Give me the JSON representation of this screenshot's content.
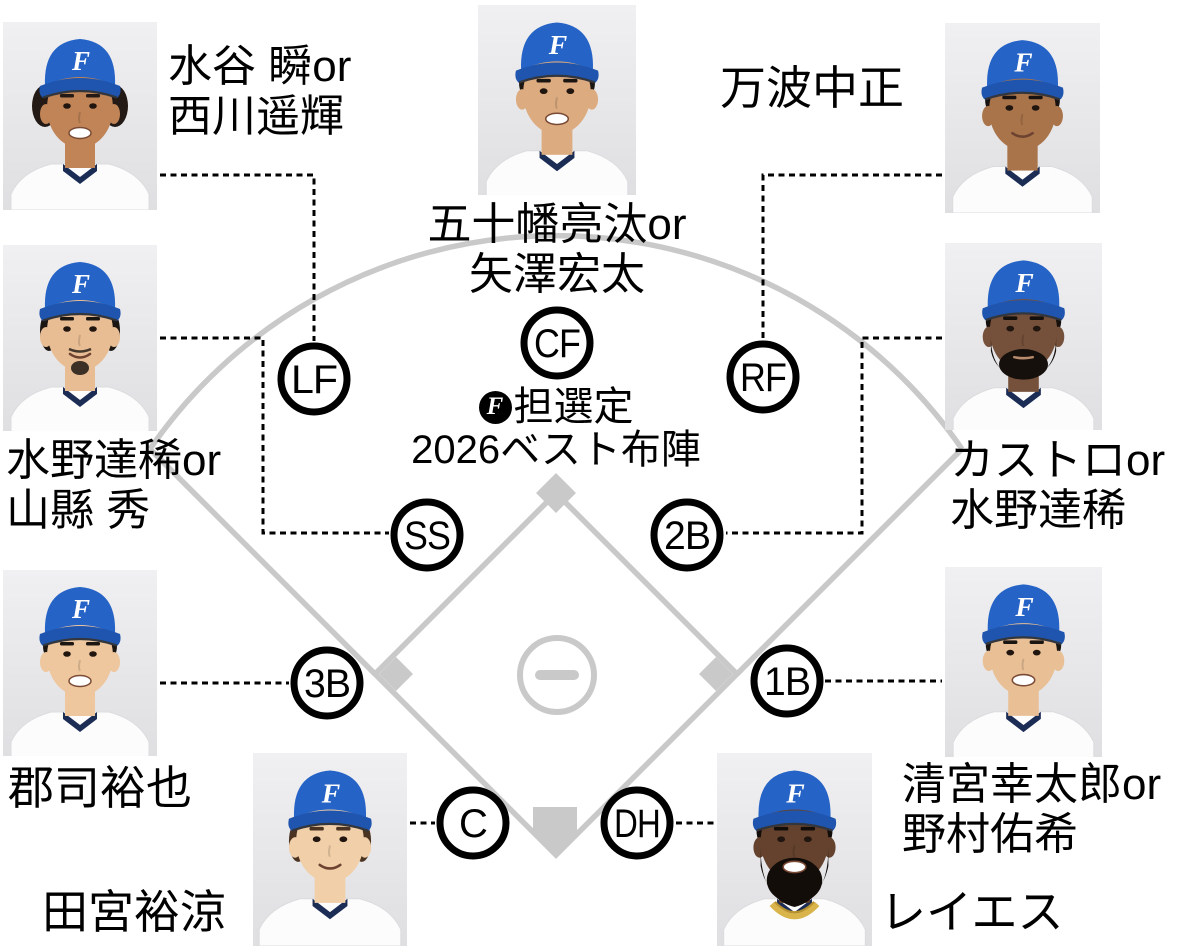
{
  "center_note": {
    "badge": "F",
    "line1": "担選定",
    "line2": "2026ベスト布陣"
  },
  "pitcher": {
    "mark": "−"
  },
  "colors": {
    "field_line": "#c9c9c9",
    "connector_line": "#000000",
    "position_circle_stroke": "#000000",
    "cap_blue": "#2563c6",
    "cap_brim_blue": "#1f55ae",
    "photo_background": "#e9e9eb",
    "chain_gold": "#d9b44a"
  },
  "players": [
    {
      "id": "lf",
      "position": "LF",
      "name_line1": "水谷 瞬or",
      "name_line2": "西川遥輝",
      "photo": {
        "skin": "#c08457",
        "hair": "#231a16",
        "sides": "curly",
        "beard": "none",
        "smile": "teeth",
        "chain": "none"
      }
    },
    {
      "id": "cf",
      "position": "CF",
      "name_line1": "五十幡亮汰or",
      "name_line2": "矢澤宏太",
      "photo": {
        "skin": "#dcab7f",
        "hair": "#1c1613",
        "sides": "normal",
        "beard": "none",
        "smile": "teeth",
        "chain": "none"
      }
    },
    {
      "id": "rf",
      "position": "RF",
      "name_line1": "万波中正",
      "name_line2": "",
      "photo": {
        "skin": "#a9744a",
        "hair": "#181210",
        "sides": "normal",
        "beard": "none",
        "smile": "soft",
        "chain": "none"
      }
    },
    {
      "id": "ss",
      "position": "SS",
      "name_line1": "水野達稀or",
      "name_line2": "山縣 秀",
      "photo": {
        "skin": "#e8bd93",
        "hair": "#1c1613",
        "sides": "long",
        "beard": "goatee",
        "smile": "soft",
        "chain": "none"
      }
    },
    {
      "id": "2b",
      "position": "2B",
      "name_line1": "カストロor",
      "name_line2": "水野達稀",
      "photo": {
        "skin": "#75503a",
        "hair": "#16100d",
        "sides": "normal",
        "beard": "full",
        "smile": "neutral",
        "chain": "none"
      }
    },
    {
      "id": "3b",
      "position": "3B",
      "name_line1": "郡司裕也",
      "name_line2": "",
      "photo": {
        "skin": "#eec79e",
        "hair": "#1c1613",
        "sides": "normal",
        "beard": "none",
        "smile": "teeth",
        "chain": "none"
      }
    },
    {
      "id": "1b",
      "position": "1B",
      "name_line1": "清宮幸太郎or",
      "name_line2": "野村佑希",
      "photo": {
        "skin": "#e9c096",
        "hair": "#1c1613",
        "sides": "normal",
        "beard": "none",
        "smile": "teeth",
        "chain": "none"
      }
    },
    {
      "id": "c",
      "position": "C",
      "name_line1": "田宮裕涼",
      "name_line2": "",
      "photo": {
        "skin": "#f1cfa8",
        "hair": "#4a3320",
        "sides": "long",
        "beard": "none",
        "smile": "soft",
        "chain": "none"
      }
    },
    {
      "id": "dh",
      "position": "DH",
      "name_line1": "レイエス",
      "name_line2": "",
      "photo": {
        "skin": "#64422e",
        "hair": "#130d0a",
        "sides": "normal",
        "beard": "big",
        "smile": "teeth",
        "chain": "gold"
      }
    }
  ]
}
